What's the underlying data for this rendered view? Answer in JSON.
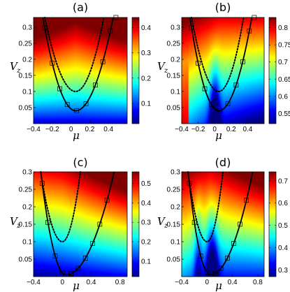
{
  "chart_data": [
    {
      "type": "heatmap",
      "title": "(a)",
      "xlabel": "μ",
      "ylabel_main": "V",
      "ylabel_sub": "z",
      "xlim": [
        -0.4,
        0.6
      ],
      "ylim": [
        0.0,
        0.33
      ],
      "xticks": [
        -0.4,
        -0.2,
        0,
        0.2,
        0.4
      ],
      "xtick_labels": [
        "−0.4",
        "−0.2",
        "0",
        "0.2",
        "0.4"
      ],
      "yticks": [
        0.05,
        0.1,
        0.15,
        0.2,
        0.25,
        0.3
      ],
      "ytick_labels": [
        "0.05",
        "0.1",
        "0.15",
        "0.2",
        "0.25",
        "0.3"
      ],
      "colorbar": {
        "min": 0.02,
        "max": 0.44,
        "ticks": [
          0.1,
          0.2,
          0.3,
          0.4
        ],
        "tick_labels": [
          "0.1",
          "0.2",
          "0.3",
          "0.4"
        ]
      },
      "solid_curve": {
        "vertex_mu": 0.05,
        "vertex_v": 0.04,
        "left_mu_at_top": -0.3,
        "right_mu_at_top": 0.45
      },
      "dotted_curve": {
        "vertex_mu": 0.05,
        "vertex_v": 0.1,
        "left_mu_at_top": -0.28,
        "right_mu_at_top": 0.35
      },
      "markers_mu": [
        -0.28,
        -0.2,
        -0.12,
        -0.04,
        0.06,
        0.16,
        0.26,
        0.34,
        0.42,
        0.48
      ]
    },
    {
      "type": "heatmap",
      "title": "(b)",
      "xlabel": "μ",
      "ylabel_main": "V",
      "ylabel_sub": "z",
      "xlim": [
        -0.4,
        0.6
      ],
      "ylim": [
        0.0,
        0.33
      ],
      "xticks": [
        -0.4,
        -0.2,
        0,
        0.2,
        0.4
      ],
      "xtick_labels": [
        "−0.4",
        "−0.2",
        "0",
        "0.2",
        "0.4"
      ],
      "yticks": [
        0.05,
        0.1,
        0.15,
        0.2,
        0.25,
        0.3
      ],
      "ytick_labels": [
        "0.05",
        "0.1",
        "0.15",
        "0.2",
        "0.25",
        "0.3"
      ],
      "colorbar": {
        "min": 0.52,
        "max": 0.83,
        "ticks": [
          0.55,
          0.6,
          0.65,
          0.7,
          0.75,
          0.8
        ],
        "tick_labels": [
          "0.55",
          "0.6",
          "0.65",
          "0.7",
          "0.75",
          "0.8"
        ]
      },
      "solid_curve": {
        "vertex_mu": 0.05,
        "vertex_v": 0.04,
        "left_mu_at_top": -0.3,
        "right_mu_at_top": 0.45
      },
      "dotted_curve": {
        "vertex_mu": 0.05,
        "vertex_v": 0.1,
        "left_mu_at_top": -0.28,
        "right_mu_at_top": 0.35
      },
      "markers_mu": [
        -0.28,
        -0.2,
        -0.12,
        -0.04,
        0.06,
        0.16,
        0.26,
        0.34,
        0.42,
        0.48
      ]
    },
    {
      "type": "heatmap",
      "title": "(c)",
      "xlabel": "μ",
      "ylabel_main": "V",
      "ylabel_sub": "z",
      "xlim": [
        -0.4,
        0.9
      ],
      "ylim": [
        0.0,
        0.3
      ],
      "xticks": [
        -0.4,
        0,
        0.4,
        0.8
      ],
      "xtick_labels": [
        "−0.4",
        "0",
        "0.4",
        "0.8"
      ],
      "yticks": [
        0.05,
        0.1,
        0.15,
        0.2,
        0.25,
        0.3
      ],
      "ytick_labels": [
        "0.05",
        "0.1",
        "0.15",
        "0.2",
        "0.25",
        "0.3"
      ],
      "colorbar": {
        "min": 0.02,
        "max": 0.56,
        "ticks": [
          0.1,
          0.2,
          0.3,
          0.4,
          0.5
        ],
        "tick_labels": [
          "0.1",
          "0.2",
          "0.3",
          "0.4",
          "0.5"
        ]
      },
      "solid_curve": {
        "vertex_mu": 0.05,
        "vertex_v": 0.005,
        "left_mu_at_top": -0.3,
        "right_mu_at_top": 0.72
      },
      "dotted_curve": {
        "vertex_mu": 0.0,
        "vertex_v": 0.1,
        "left_mu_at_top": -0.3,
        "right_mu_at_top": 0.25
      },
      "markers_mu": [
        -0.28,
        -0.2,
        -0.1,
        0.0,
        0.12,
        0.22,
        0.32,
        0.42,
        0.52,
        0.62
      ]
    },
    {
      "type": "heatmap",
      "title": "(d)",
      "xlabel": "μ",
      "ylabel_main": "V",
      "ylabel_sub": "z",
      "xlim": [
        -0.4,
        0.9
      ],
      "ylim": [
        0.0,
        0.3
      ],
      "xticks": [
        -0.4,
        0,
        0.4,
        0.8
      ],
      "xtick_labels": [
        "−0.4",
        "0",
        "0.4",
        "0.8"
      ],
      "yticks": [
        0.05,
        0.1,
        0.15,
        0.2,
        0.25,
        0.3
      ],
      "ytick_labels": [
        "0.05",
        "0.1",
        "0.15",
        "0.2",
        "0.25",
        "0.3"
      ],
      "colorbar": {
        "min": 0.27,
        "max": 0.74,
        "ticks": [
          0.3,
          0.4,
          0.5,
          0.6,
          0.7
        ],
        "tick_labels": [
          "0.3",
          "0.4",
          "0.5",
          "0.6",
          "0.7"
        ]
      },
      "solid_curve": {
        "vertex_mu": 0.05,
        "vertex_v": 0.005,
        "left_mu_at_top": -0.3,
        "right_mu_at_top": 0.72
      },
      "dotted_curve": {
        "vertex_mu": 0.0,
        "vertex_v": 0.1,
        "left_mu_at_top": -0.3,
        "right_mu_at_top": 0.25
      },
      "markers_mu": [
        -0.28,
        -0.2,
        -0.1,
        0.0,
        0.12,
        0.22,
        0.32,
        0.42,
        0.52,
        0.62
      ]
    }
  ]
}
